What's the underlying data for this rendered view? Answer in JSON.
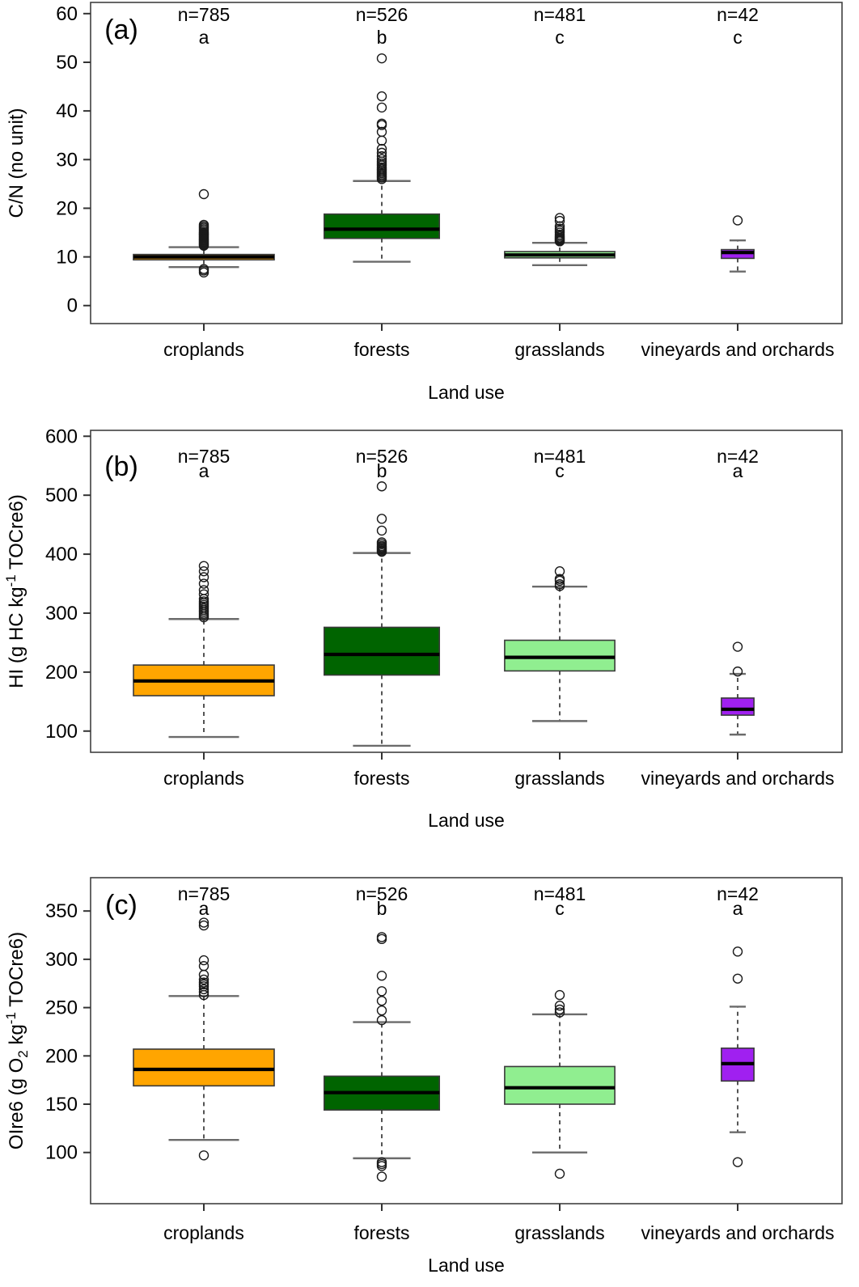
{
  "figure": {
    "xlabel": "Land use",
    "categories": [
      "croplands",
      "forests",
      "grasslands",
      "vineyards and orchards"
    ],
    "palette": {
      "croplands": "#FFA500",
      "forests": "#006400",
      "grasslands": "#90EE90",
      "vineyards_and_orchards": "#A020F0"
    }
  },
  "chart_data": [
    {
      "type": "boxplot",
      "panel": "(a)",
      "xlabel": "Land use",
      "ylabel": "C/N (no unit)",
      "ylabel_parts": [
        {
          "t": "C/N (no unit)",
          "pos": "n"
        }
      ],
      "ylim": [
        -3.7,
        62.3
      ],
      "yticks": [
        0,
        10,
        20,
        30,
        40,
        50,
        60
      ],
      "categories": [
        "croplands",
        "forests",
        "grasslands",
        "vineyards and orchards"
      ],
      "n_labels": [
        "n=785",
        "n=526",
        "n=481",
        "n=42"
      ],
      "sig_letters": [
        "a",
        "b",
        "c",
        "c"
      ],
      "series": [
        {
          "name": "croplands",
          "color": "#FFA500",
          "n": 785,
          "sig": "a",
          "q1": 9.4,
          "median": 10.0,
          "q3": 10.5,
          "whisker_low": 7.9,
          "whisker_high": 12.0,
          "outliers": [
            6.8,
            7.2,
            7.5,
            12.3,
            12.5,
            12.7,
            12.9,
            13.1,
            13.3,
            13.5,
            13.7,
            13.9,
            14.1,
            14.3,
            14.5,
            14.7,
            14.9,
            15.1,
            15.4,
            15.7,
            16.0,
            16.3,
            16.6,
            22.9
          ]
        },
        {
          "name": "forests",
          "color": "#006400",
          "n": 526,
          "sig": "b",
          "q1": 13.8,
          "median": 15.7,
          "q3": 18.8,
          "whisker_low": 9.0,
          "whisker_high": 25.6,
          "outliers": [
            26.0,
            26.3,
            26.6,
            26.9,
            27.2,
            27.5,
            27.8,
            28.1,
            28.4,
            28.8,
            29.2,
            29.6,
            30.1,
            30.7,
            31.4,
            32.2,
            33.9,
            35.7,
            37.1,
            37.4,
            40.7,
            43.0,
            50.8
          ]
        },
        {
          "name": "grasslands",
          "color": "#90EE90",
          "n": 481,
          "sig": "c",
          "q1": 9.8,
          "median": 10.4,
          "q3": 11.1,
          "whisker_low": 8.3,
          "whisker_high": 12.9,
          "outliers": [
            13.2,
            13.4,
            13.6,
            13.8,
            14.0,
            14.3,
            14.6,
            15.0,
            15.4,
            15.8,
            16.3,
            17.4,
            18.0
          ]
        },
        {
          "name": "vineyards and orchards",
          "color": "#A020F0",
          "n": 42,
          "sig": "c",
          "q1": 9.7,
          "median": 10.9,
          "q3": 11.5,
          "whisker_low": 7.0,
          "whisker_high": 13.4,
          "outliers": [
            17.5
          ]
        }
      ]
    },
    {
      "type": "boxplot",
      "panel": "(b)",
      "xlabel": "Land use",
      "ylabel": "HI (g HC kg-1 TOCre6)",
      "ylabel_parts": [
        {
          "t": "HI (g HC kg",
          "pos": "n"
        },
        {
          "t": "-1",
          "pos": "sup"
        },
        {
          "t": " TOCre6)",
          "pos": "n"
        }
      ],
      "ylim": [
        64,
        610
      ],
      "yticks": [
        100,
        200,
        300,
        400,
        500,
        600
      ],
      "categories": [
        "croplands",
        "forests",
        "grasslands",
        "vineyards and orchards"
      ],
      "n_labels": [
        "n=785",
        "n=526",
        "n=481",
        "n=42"
      ],
      "sig_letters": [
        "a",
        "b",
        "c",
        "a"
      ],
      "series": [
        {
          "name": "croplands",
          "color": "#FFA500",
          "n": 785,
          "sig": "a",
          "q1": 160,
          "median": 185,
          "q3": 212,
          "whisker_low": 90,
          "whisker_high": 290,
          "outliers": [
            293,
            296,
            299,
            302,
            305,
            308,
            311,
            314,
            317,
            320,
            324,
            332,
            339,
            350,
            361,
            371,
            380
          ]
        },
        {
          "name": "forests",
          "color": "#006400",
          "n": 526,
          "sig": "b",
          "q1": 195,
          "median": 230,
          "q3": 276,
          "whisker_low": 75,
          "whisker_high": 402,
          "outliers": [
            404,
            406,
            408,
            410,
            412,
            414,
            417,
            420,
            440,
            460,
            515
          ]
        },
        {
          "name": "grasslands",
          "color": "#90EE90",
          "n": 481,
          "sig": "c",
          "q1": 202,
          "median": 225,
          "q3": 254,
          "whisker_low": 117,
          "whisker_high": 345,
          "outliers": [
            346,
            349,
            355,
            358,
            371
          ]
        },
        {
          "name": "vineyards and orchards",
          "color": "#A020F0",
          "n": 42,
          "sig": "a",
          "q1": 127,
          "median": 137,
          "q3": 156,
          "whisker_low": 94,
          "whisker_high": 197,
          "outliers": [
            201,
            243
          ]
        }
      ]
    },
    {
      "type": "boxplot",
      "panel": "(c)",
      "xlabel": "Land use",
      "ylabel": "OIre6 (g O2 kg-1 TOCre6)",
      "ylabel_parts": [
        {
          "t": "OIre6 (g O",
          "pos": "n"
        },
        {
          "t": "2",
          "pos": "sub"
        },
        {
          "t": " kg",
          "pos": "n"
        },
        {
          "t": "-1",
          "pos": "sup"
        },
        {
          "t": " TOCre6)",
          "pos": "n"
        }
      ],
      "ylim": [
        47,
        384.5
      ],
      "yticks": [
        100,
        150,
        200,
        250,
        300,
        350
      ],
      "categories": [
        "croplands",
        "forests",
        "grasslands",
        "vineyards and orchards"
      ],
      "n_labels": [
        "n=785",
        "n=526",
        "n=481",
        "n=42"
      ],
      "sig_letters": [
        "a",
        "b",
        "c",
        "a"
      ],
      "series": [
        {
          "name": "croplands",
          "color": "#FFA500",
          "n": 785,
          "sig": "a",
          "q1": 169,
          "median": 186,
          "q3": 207,
          "whisker_low": 113,
          "whisker_high": 262,
          "outliers": [
            97,
            263,
            266,
            269,
            272,
            274,
            276,
            279,
            284,
            293,
            299,
            335,
            338
          ]
        },
        {
          "name": "forests",
          "color": "#006400",
          "n": 526,
          "sig": "b",
          "q1": 144,
          "median": 162,
          "q3": 179,
          "whisker_low": 94,
          "whisker_high": 235,
          "outliers": [
            75,
            86,
            88,
            90,
            237,
            247,
            257,
            267,
            283,
            321,
            323
          ]
        },
        {
          "name": "grasslands",
          "color": "#90EE90",
          "n": 481,
          "sig": "c",
          "q1": 150,
          "median": 167,
          "q3": 189,
          "whisker_low": 100,
          "whisker_high": 243,
          "outliers": [
            78,
            245,
            248,
            252,
            263
          ]
        },
        {
          "name": "vineyards and orchards",
          "color": "#A020F0",
          "n": 42,
          "sig": "a",
          "q1": 174,
          "median": 192,
          "q3": 208,
          "whisker_low": 121,
          "whisker_high": 251,
          "outliers": [
            90,
            280,
            308
          ]
        }
      ]
    }
  ]
}
